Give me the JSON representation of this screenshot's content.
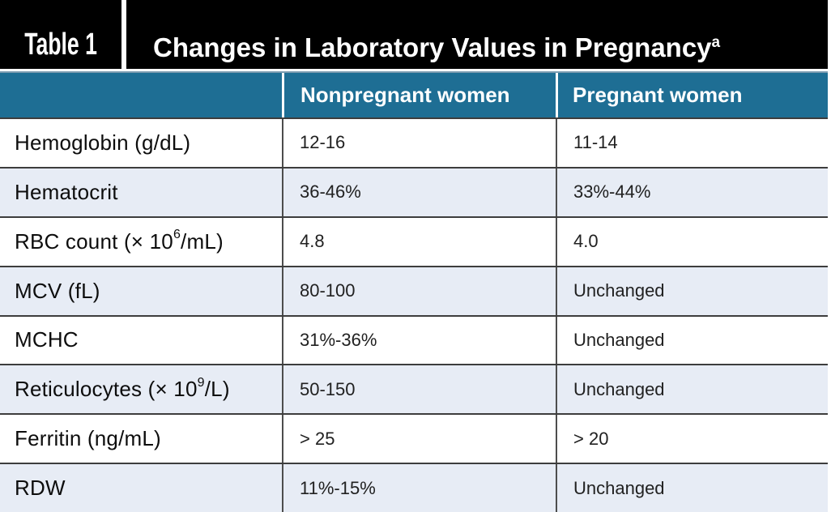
{
  "header": {
    "table_number": "Table 1",
    "title": "Changes in Laboratory Values in Pregnancy",
    "footnote_marker": "a"
  },
  "columns": {
    "nonpregnant": "Nonpregnant women",
    "pregnant": "Pregnant women"
  },
  "rows": [
    {
      "label_pre": "Hemoglobin (g/dL)",
      "label_sup": "",
      "label_post": "",
      "nonpregnant": "12-16",
      "pregnant": "11-14"
    },
    {
      "label_pre": "Hematocrit",
      "label_sup": "",
      "label_post": "",
      "nonpregnant": "36-46%",
      "pregnant": "33%-44%"
    },
    {
      "label_pre": "RBC count (× 10",
      "label_sup": "6",
      "label_post": "/mL)",
      "nonpregnant": "4.8",
      "pregnant": "4.0"
    },
    {
      "label_pre": "MCV (fL)",
      "label_sup": "",
      "label_post": "",
      "nonpregnant": "80-100",
      "pregnant": "Unchanged"
    },
    {
      "label_pre": "MCHC",
      "label_sup": "",
      "label_post": "",
      "nonpregnant": "31%-36%",
      "pregnant": "Unchanged"
    },
    {
      "label_pre": "Reticulocytes (× 10",
      "label_sup": "9",
      "label_post": "/L)",
      "nonpregnant": "50-150",
      "pregnant": "Unchanged"
    },
    {
      "label_pre": "Ferritin (ng/mL)",
      "label_sup": "",
      "label_post": "",
      "nonpregnant": "> 25",
      "pregnant": "> 20"
    },
    {
      "label_pre": "RDW",
      "label_sup": "",
      "label_post": "",
      "nonpregnant": "11%-15%",
      "pregnant": "Unchanged"
    }
  ],
  "colors": {
    "header_bar": "#000000",
    "column_header_bg": "#1e6e94",
    "alt_row_bg": "#e7ecf5",
    "row_border": "#3d3d3d",
    "header_text": "#ffffff"
  }
}
